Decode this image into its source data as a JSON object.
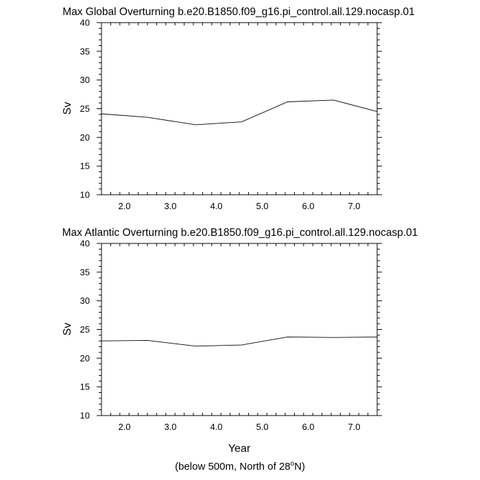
{
  "chart_data": [
    {
      "type": "line",
      "title": "Max Global Overturning b.e20.B1850.f09_g16.pi_control.all.129.nocasp.01",
      "xlabel": "",
      "ylabel": "Sv",
      "xlim": [
        1.5,
        7.5
      ],
      "ylim": [
        10,
        40
      ],
      "xticks": [
        2.0,
        3.0,
        4.0,
        5.0,
        6.0,
        7.0
      ],
      "xtick_labels": [
        "2.0",
        "3.0",
        "4.0",
        "5.0",
        "6.0",
        "7.0"
      ],
      "yticks": [
        10,
        15,
        20,
        25,
        30,
        35,
        40
      ],
      "ytick_labels": [
        "10",
        "15",
        "20",
        "25",
        "30",
        "35",
        "40"
      ],
      "series": [
        {
          "name": "global",
          "x": [
            1.5,
            2.5,
            3.55,
            4.55,
            5.55,
            6.55,
            7.5
          ],
          "y": [
            24.1,
            23.5,
            22.2,
            22.7,
            26.2,
            26.5,
            24.5
          ]
        }
      ]
    },
    {
      "type": "line",
      "title": "Max Atlantic Overturning b.e20.B1850.f09_g16.pi_control.all.129.nocasp.01",
      "xlabel": "Year",
      "ylabel": "Sv",
      "xlim": [
        1.5,
        7.5
      ],
      "ylim": [
        10,
        40
      ],
      "xticks": [
        2.0,
        3.0,
        4.0,
        5.0,
        6.0,
        7.0
      ],
      "xtick_labels": [
        "2.0",
        "3.0",
        "4.0",
        "5.0",
        "6.0",
        "7.0"
      ],
      "yticks": [
        10,
        15,
        20,
        25,
        30,
        35,
        40
      ],
      "ytick_labels": [
        "10",
        "15",
        "20",
        "25",
        "30",
        "35",
        "40"
      ],
      "series": [
        {
          "name": "atlantic",
          "x": [
            1.5,
            2.5,
            3.55,
            4.55,
            5.55,
            6.55,
            7.5
          ],
          "y": [
            23.0,
            23.1,
            22.1,
            22.3,
            23.7,
            23.6,
            23.7
          ]
        }
      ]
    }
  ],
  "footnote": {
    "prefix": "(below 500m, North of 28",
    "superscript": "o",
    "suffix": "N)"
  }
}
